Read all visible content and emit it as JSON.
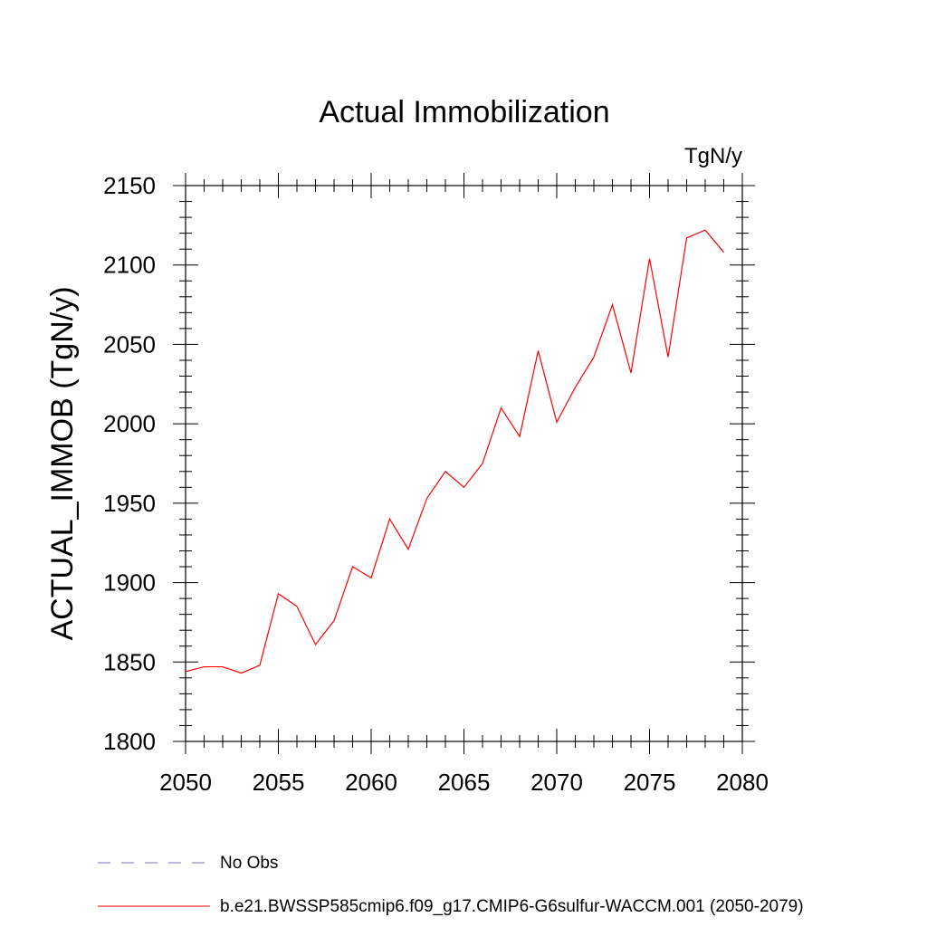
{
  "chart_data": {
    "type": "line",
    "title": "Actual Immobilization",
    "units_label": "TgN/y",
    "xlabel": "",
    "ylabel": "ACTUAL_IMMOB  (TgN/y)",
    "xlim": [
      2050,
      2080
    ],
    "ylim": [
      1800,
      2150
    ],
    "x_ticks": [
      2050,
      2055,
      2060,
      2065,
      2070,
      2075,
      2080
    ],
    "x_tick_labels": [
      "2050",
      "2055",
      "2060",
      "2065",
      "2070",
      "2075",
      "2080"
    ],
    "x_minor_step": 1,
    "y_ticks": [
      1800,
      1850,
      1900,
      1950,
      2000,
      2050,
      2100,
      2150
    ],
    "y_tick_labels": [
      "1800",
      "1850",
      "1900",
      "1950",
      "2000",
      "2050",
      "2100",
      "2150"
    ],
    "y_minor_step": 10,
    "grid": false,
    "legend_position": "bottom",
    "x": [
      2050,
      2051,
      2052,
      2053,
      2054,
      2055,
      2056,
      2057,
      2058,
      2059,
      2060,
      2061,
      2062,
      2063,
      2064,
      2065,
      2066,
      2067,
      2068,
      2069,
      2070,
      2071,
      2072,
      2073,
      2074,
      2075,
      2076,
      2077,
      2078,
      2079
    ],
    "series": [
      {
        "name": "b.e21.BWSSP585cmip6.f09_g17.CMIP6-G6sulfur-WACCM.001 (2050-2079)",
        "color": "#ff0000",
        "style": "solid",
        "values": [
          1844,
          1847,
          1847,
          1843,
          1848,
          1893,
          1885,
          1861,
          1876,
          1910,
          1903,
          1940,
          1921,
          1953,
          1970,
          1960,
          1975,
          2010,
          1992,
          2046,
          2001,
          2023,
          2042,
          2075,
          2032,
          2104,
          2042,
          2117,
          2122,
          2108
        ]
      }
    ],
    "legend": [
      {
        "label": "No Obs",
        "color": "#7b6fb0",
        "style": "dashed"
      },
      {
        "label": "b.e21.BWSSP585cmip6.f09_g17.CMIP6-G6sulfur-WACCM.001 (2050-2079)",
        "color": "#ff0000",
        "style": "solid"
      }
    ]
  }
}
